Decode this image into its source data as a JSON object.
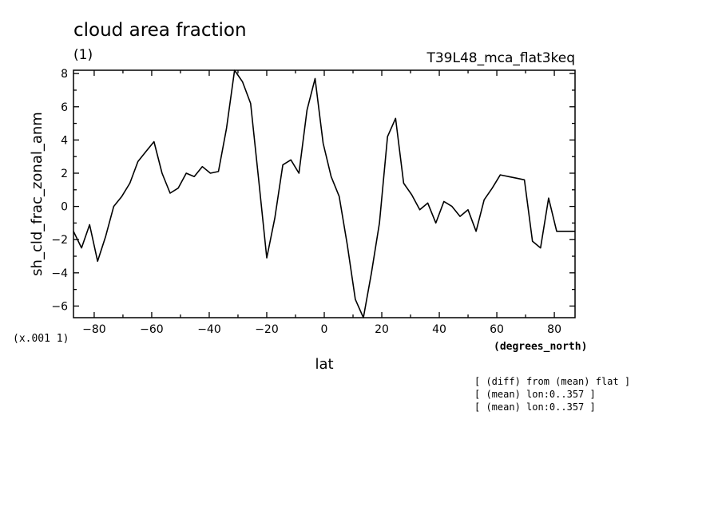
{
  "chart_data": {
    "type": "line",
    "title": "cloud area fraction",
    "units": "(1)",
    "dataset": "T39L48_mca_flat3keq",
    "xlabel": "lat",
    "xunits": "(degrees_north)",
    "ylabel": "sh_cld_frac_zonal_anm",
    "yscale_note": "(x.001 1)",
    "xlim": [
      -87.2,
      87.2
    ],
    "ylim": [
      -6.7,
      8.2
    ],
    "xticks": [
      -80,
      -60,
      -40,
      -20,
      0,
      20,
      40,
      60,
      80
    ],
    "yticks": [
      -6,
      -4,
      -2,
      0,
      2,
      4,
      6,
      8
    ],
    "xtick_labels": [
      "−80",
      "−60",
      "−40",
      "−20",
      "0",
      "20",
      "40",
      "60",
      "80"
    ],
    "ytick_labels": [
      "−6",
      "−4",
      "−2",
      "0",
      "2",
      "4",
      "6",
      "8"
    ],
    "grid": false,
    "series": [
      {
        "x": [
          -87.2,
          -84.4,
          -81.6,
          -78.8,
          -76.0,
          -73.2,
          -70.4,
          -67.6,
          -64.8,
          -62.0,
          -59.2,
          -56.4,
          -53.6,
          -50.8,
          -48.0,
          -45.2,
          -42.4,
          -39.6,
          -36.8,
          -34.0,
          -31.2,
          -28.4,
          -25.6,
          -22.8,
          -20.0,
          -17.2,
          -14.4,
          -11.6,
          -8.8,
          -6.0,
          -3.2,
          -0.4,
          2.4,
          5.2,
          8.0,
          10.8,
          13.6,
          16.4,
          19.2,
          22.0,
          24.8,
          27.6,
          30.4,
          33.2,
          36.0,
          38.8,
          41.6,
          44.4,
          47.2,
          50.0,
          52.8,
          55.6,
          58.4,
          61.2,
          64.0,
          66.8,
          69.6,
          72.4,
          75.2,
          78.0,
          80.8,
          83.6,
          86.4,
          87.2
        ],
        "y": [
          -1.5,
          -2.5,
          -1.1,
          -3.3,
          -1.8,
          0.0,
          0.6,
          1.4,
          2.7,
          3.3,
          3.9,
          2.0,
          0.8,
          1.1,
          2.0,
          1.8,
          2.4,
          2.0,
          2.1,
          4.7,
          8.2,
          7.5,
          6.2,
          1.6,
          -3.1,
          -0.7,
          2.5,
          2.8,
          2.0,
          5.8,
          7.7,
          3.8,
          1.8,
          0.6,
          -2.3,
          -5.6,
          -6.7,
          -4.0,
          -1.0,
          4.2,
          5.3,
          1.4,
          0.7,
          -0.2,
          0.2,
          -1.0,
          0.3,
          0.0,
          -0.6,
          -0.2,
          -1.5,
          0.4,
          1.1,
          1.9,
          1.8,
          1.7,
          1.6,
          -2.1,
          -2.5,
          0.5,
          -1.5,
          -1.5,
          -1.5,
          -1.5
        ]
      }
    ]
  },
  "notes": [
    "[ (diff) from (mean) flat ]",
    "[ (mean) lon:0..357 ]",
    "[ (mean) lon:0..357 ]"
  ]
}
